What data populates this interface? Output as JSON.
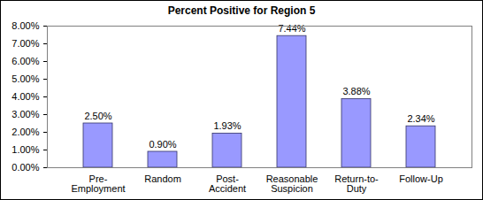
{
  "chart_data": {
    "type": "bar",
    "title": "Percent Positive for Region 5",
    "categories": [
      "Pre-Employment",
      "Random",
      "Post-Accident",
      "Reasonable Suspicion",
      "Return-to-Duty",
      "Follow-Up"
    ],
    "values": [
      2.5,
      0.9,
      1.93,
      7.44,
      3.88,
      2.34
    ],
    "value_labels": [
      "2.50%",
      "0.90%",
      "1.93%",
      "7.44%",
      "3.88%",
      "2.34%"
    ],
    "color": "#9999ff",
    "ylim": [
      0,
      8
    ],
    "yticks": [
      {
        "value": 0,
        "label": "0.00%"
      },
      {
        "value": 1,
        "label": "1.00%"
      },
      {
        "value": 2,
        "label": "2.00%"
      },
      {
        "value": 3,
        "label": "3.00%"
      },
      {
        "value": 4,
        "label": "4.00%"
      },
      {
        "value": 5,
        "label": "5.00%"
      },
      {
        "value": 6,
        "label": "6.00%"
      },
      {
        "value": 7,
        "label": "7.00%"
      },
      {
        "value": 8,
        "label": "8.00%"
      }
    ],
    "grid": false,
    "data_labels": true
  }
}
